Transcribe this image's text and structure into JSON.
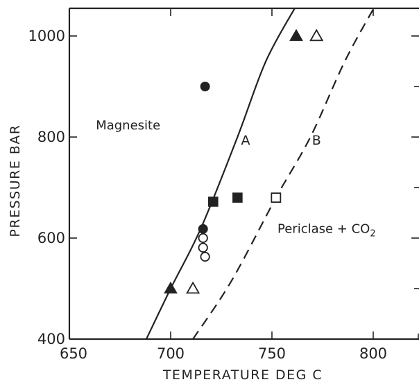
{
  "chart_data": {
    "type": "scatter",
    "title": "",
    "xlabel": "TEMPERATURE DEG C",
    "ylabel": "PRESSURE BAR",
    "xlim": [
      650,
      825
    ],
    "ylim": [
      400,
      1060
    ],
    "xticks": [
      650,
      700,
      750,
      800
    ],
    "yticks": [
      400,
      600,
      800,
      1000
    ],
    "grid": false,
    "region_labels": [
      {
        "text": "Magnesite",
        "x": 679,
        "y": 815
      },
      {
        "text": "Periclase + CO",
        "subscript": "2",
        "x": 777,
        "y": 610
      }
    ],
    "curves": [
      {
        "label": "A",
        "style": "solid",
        "label_x": 737,
        "label_y": 785,
        "points": [
          [
            688,
            400
          ],
          [
            700,
            500
          ],
          [
            715,
            620
          ],
          [
            733,
            800
          ],
          [
            747,
            950
          ],
          [
            762,
            1060
          ]
        ]
      },
      {
        "label": "B",
        "style": "dashed",
        "label_x": 772,
        "label_y": 785,
        "points": [
          [
            711,
            400
          ],
          [
            730,
            515
          ],
          [
            752,
            680
          ],
          [
            769,
            800
          ],
          [
            786,
            950
          ],
          [
            801,
            1060
          ]
        ]
      }
    ],
    "markers": [
      {
        "shape": "triangle",
        "filled": true,
        "x": 700,
        "y": 500
      },
      {
        "shape": "triangle",
        "filled": false,
        "x": 711,
        "y": 500
      },
      {
        "shape": "triangle",
        "filled": true,
        "x": 762,
        "y": 1000
      },
      {
        "shape": "triangle",
        "filled": false,
        "x": 772,
        "y": 1000
      },
      {
        "shape": "circle",
        "filled": true,
        "x": 717,
        "y": 900
      },
      {
        "shape": "circle",
        "filled": true,
        "x": 716,
        "y": 618
      },
      {
        "shape": "circle",
        "filled": false,
        "x": 716,
        "y": 600
      },
      {
        "shape": "circle",
        "filled": false,
        "x": 716,
        "y": 581
      },
      {
        "shape": "circle",
        "filled": false,
        "x": 717,
        "y": 563
      },
      {
        "shape": "square",
        "filled": true,
        "x": 721,
        "y": 672
      },
      {
        "shape": "square",
        "filled": true,
        "x": 733,
        "y": 680
      },
      {
        "shape": "square",
        "filled": false,
        "x": 752,
        "y": 680
      }
    ]
  }
}
